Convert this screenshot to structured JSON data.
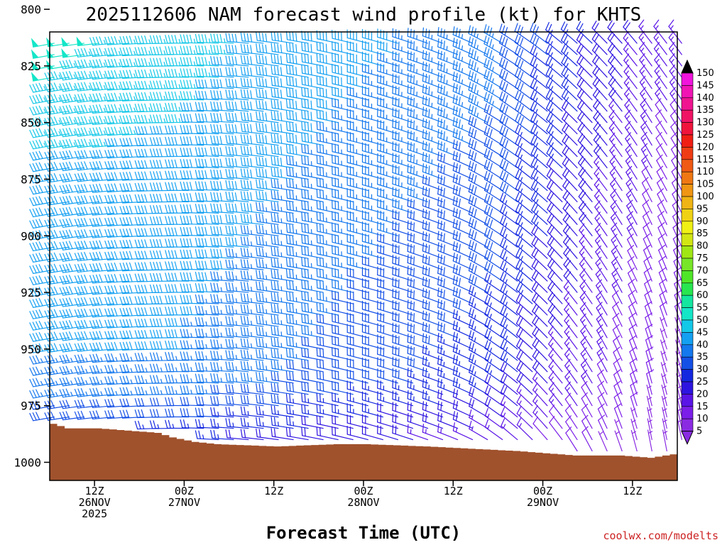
{
  "header": {
    "title": "2025112606 NAM forecast wind profile (kt) for KHTS"
  },
  "footer": {
    "credit": "coolwx.com/modelts"
  },
  "colors": {
    "terrain": "#a0522d",
    "background": "#ffffff",
    "axis": "#000000"
  },
  "chart_data": {
    "type": "wind-barb-profile",
    "title": "2025112606 NAM forecast wind profile (kt) for KHTS",
    "xlabel": "Forecast Time (UTC)",
    "ylabel": "",
    "units": "kt",
    "x_range_hours": [
      0,
      84
    ],
    "x_step_hours": 1,
    "y_range_hpa": [
      810,
      1008
    ],
    "y_axis_inverted": true,
    "y_levels_hpa": [
      800,
      825,
      850,
      875,
      900,
      925,
      950,
      975,
      1000
    ],
    "barb_levels_hpa": [
      800,
      805,
      810,
      815,
      820,
      825,
      830,
      835,
      840,
      845,
      850,
      855,
      860,
      865,
      870,
      875,
      880,
      885,
      890,
      895,
      900,
      905,
      910,
      915,
      920,
      925,
      930,
      935,
      940,
      945,
      950,
      955,
      960,
      965,
      970,
      975,
      980,
      985,
      990,
      995,
      1000,
      1005
    ],
    "x_ticks": [
      {
        "hour": 6,
        "lines": [
          "12Z",
          "26NOV",
          "2025"
        ]
      },
      {
        "hour": 18,
        "lines": [
          "00Z",
          "27NOV"
        ]
      },
      {
        "hour": 30,
        "lines": [
          "12Z"
        ]
      },
      {
        "hour": 42,
        "lines": [
          "00Z",
          "28NOV"
        ]
      },
      {
        "hour": 54,
        "lines": [
          "12Z"
        ]
      },
      {
        "hour": 66,
        "lines": [
          "00Z",
          "29NOV"
        ]
      },
      {
        "hour": 78,
        "lines": [
          "12Z"
        ]
      }
    ],
    "surface_pressure_hpa": [
      {
        "hour": 0,
        "p": 983
      },
      {
        "hour": 2,
        "p": 985
      },
      {
        "hour": 6,
        "p": 985
      },
      {
        "hour": 10,
        "p": 986
      },
      {
        "hour": 14,
        "p": 987
      },
      {
        "hour": 16,
        "p": 989
      },
      {
        "hour": 19,
        "p": 991
      },
      {
        "hour": 22,
        "p": 992
      },
      {
        "hour": 30,
        "p": 993
      },
      {
        "hour": 38,
        "p": 992
      },
      {
        "hour": 42,
        "p": 992
      },
      {
        "hour": 50,
        "p": 993
      },
      {
        "hour": 56,
        "p": 994
      },
      {
        "hour": 62,
        "p": 995
      },
      {
        "hour": 66,
        "p": 996
      },
      {
        "hour": 70,
        "p": 997
      },
      {
        "hour": 76,
        "p": 997
      },
      {
        "hour": 80,
        "p": 998
      },
      {
        "hour": 84,
        "p": 996
      }
    ],
    "wind_direction_deg": {
      "upper_early": 260,
      "mid_transition": 295,
      "late_upper": 320,
      "late_low_level": 350
    },
    "wind_speed_kt": {
      "peak_upper_early": 52,
      "upper_early": 45,
      "mid_levels_early": 35,
      "mid_period": 25,
      "late_upper": 15,
      "late_low_level": 7
    },
    "colorbar": {
      "label": "kt",
      "values": [
        5,
        10,
        15,
        20,
        25,
        30,
        35,
        40,
        45,
        50,
        55,
        60,
        65,
        70,
        75,
        80,
        85,
        90,
        95,
        100,
        105,
        110,
        115,
        120,
        125,
        130,
        135,
        140,
        145,
        150
      ],
      "colors": [
        "#8a2be2",
        "#7b1ee8",
        "#5a14e6",
        "#2e14e0",
        "#1428e0",
        "#1450e6",
        "#1478ee",
        "#14a0f2",
        "#14c8e8",
        "#14e6c8",
        "#14e6a0",
        "#28e650",
        "#50e628",
        "#78e628",
        "#a0e614",
        "#d2e614",
        "#f0f014",
        "#f0d214",
        "#f0b414",
        "#f09614",
        "#f07814",
        "#f05a14",
        "#f03c14",
        "#f01e14",
        "#f0143c",
        "#f01464",
        "#f01490",
        "#f014b4",
        "#f014dc",
        "#000000"
      ]
    }
  }
}
